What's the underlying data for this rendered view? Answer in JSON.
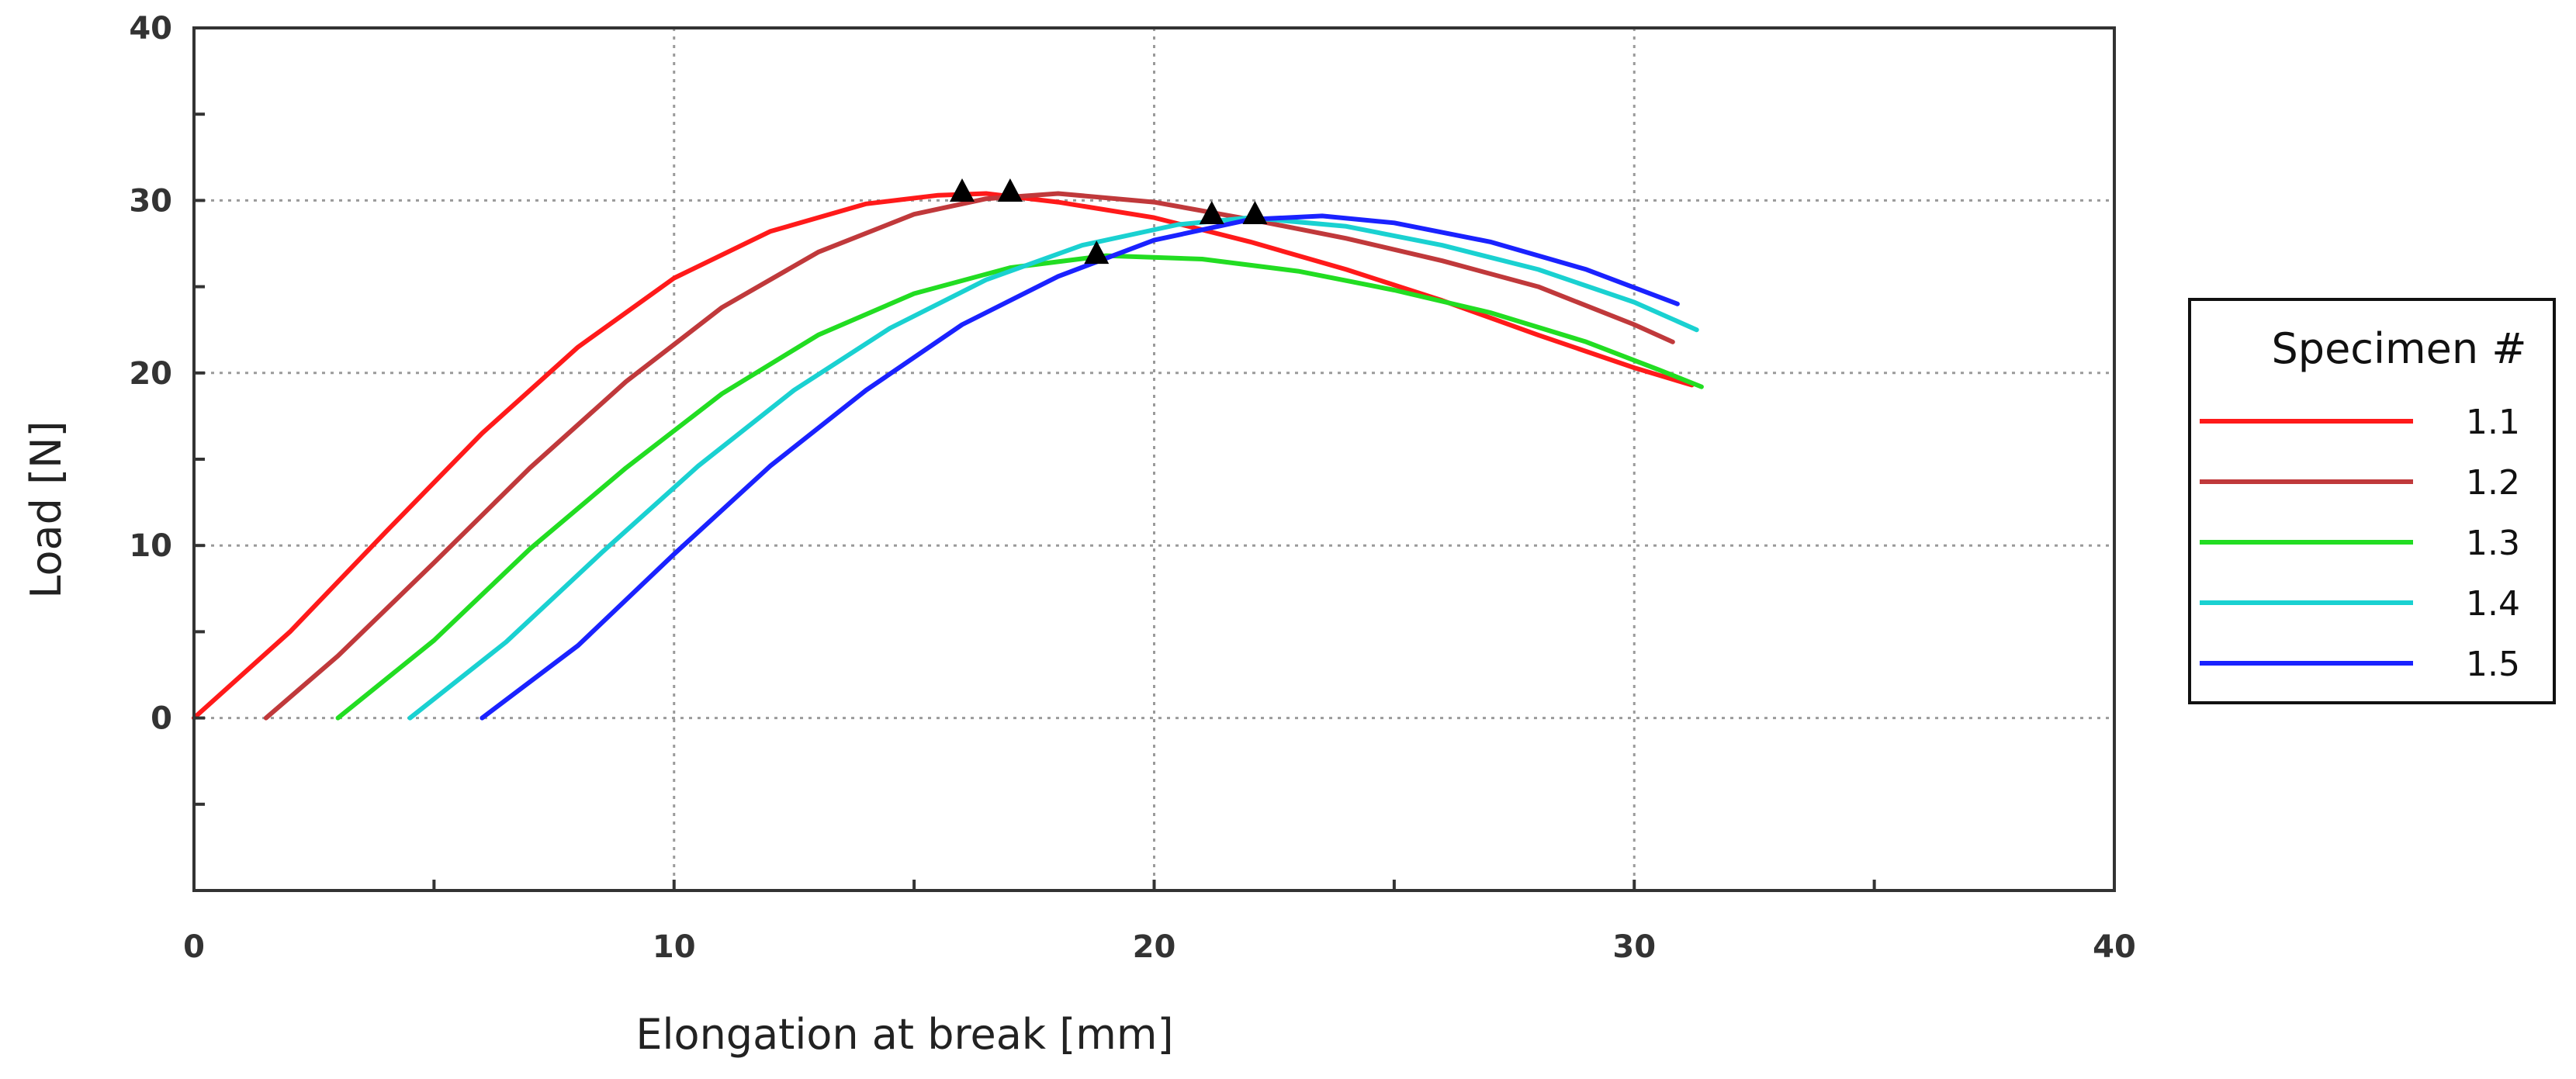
{
  "chart_data": {
    "type": "line",
    "title": "",
    "xlabel": "Elongation at break [mm]",
    "ylabel": "Load [N]",
    "xlim": [
      0,
      40
    ],
    "ylim": [
      -10,
      40
    ],
    "xticks": [
      0,
      10,
      20,
      30,
      40
    ],
    "yticks": [
      0,
      10,
      20,
      30,
      40
    ],
    "x_minor_step": 5,
    "y_minor_step": 5,
    "grid": true,
    "legend": {
      "title": "Specimen #",
      "position": "right"
    },
    "series": [
      {
        "name": "1.1",
        "color": "#ff1a1a",
        "points": [
          [
            0,
            0
          ],
          [
            2,
            5
          ],
          [
            4,
            10.8
          ],
          [
            6,
            16.5
          ],
          [
            8,
            21.5
          ],
          [
            10,
            25.5
          ],
          [
            12,
            28.2
          ],
          [
            14,
            29.8
          ],
          [
            15.5,
            30.3
          ],
          [
            16.5,
            30.4
          ],
          [
            18,
            29.9
          ],
          [
            20,
            29
          ],
          [
            22,
            27.6
          ],
          [
            24,
            26
          ],
          [
            26,
            24.2
          ],
          [
            28,
            22.2
          ],
          [
            30,
            20.3
          ],
          [
            31.2,
            19.3
          ]
        ],
        "peak": [
          16.0,
          30.6
        ]
      },
      {
        "name": "1.2",
        "color": "#c0393b",
        "points": [
          [
            1.5,
            0
          ],
          [
            3,
            3.6
          ],
          [
            5,
            9
          ],
          [
            7,
            14.5
          ],
          [
            9,
            19.5
          ],
          [
            11,
            23.8
          ],
          [
            13,
            27
          ],
          [
            15,
            29.2
          ],
          [
            16.5,
            30.1
          ],
          [
            18,
            30.4
          ],
          [
            20,
            29.9
          ],
          [
            22,
            28.9
          ],
          [
            24,
            27.8
          ],
          [
            26,
            26.5
          ],
          [
            28,
            25
          ],
          [
            30,
            22.8
          ],
          [
            30.8,
            21.8
          ]
        ],
        "peak": [
          17.0,
          30.6
        ]
      },
      {
        "name": "1.3",
        "color": "#22dd22",
        "points": [
          [
            3,
            0
          ],
          [
            5,
            4.5
          ],
          [
            7,
            9.8
          ],
          [
            9,
            14.5
          ],
          [
            11,
            18.8
          ],
          [
            13,
            22.2
          ],
          [
            15,
            24.6
          ],
          [
            17,
            26.1
          ],
          [
            19,
            26.8
          ],
          [
            21,
            26.6
          ],
          [
            23,
            25.9
          ],
          [
            25,
            24.8
          ],
          [
            27,
            23.5
          ],
          [
            29,
            21.8
          ],
          [
            30.5,
            20.2
          ],
          [
            31.4,
            19.2
          ]
        ],
        "peak": [
          18.8,
          27.0
        ]
      },
      {
        "name": "1.4",
        "color": "#1ad1d1",
        "points": [
          [
            4.5,
            0
          ],
          [
            6.5,
            4.4
          ],
          [
            8.5,
            9.6
          ],
          [
            10.5,
            14.6
          ],
          [
            12.5,
            19
          ],
          [
            14.5,
            22.6
          ],
          [
            16.5,
            25.4
          ],
          [
            18.5,
            27.4
          ],
          [
            20.5,
            28.6
          ],
          [
            22,
            29
          ],
          [
            24,
            28.5
          ],
          [
            26,
            27.4
          ],
          [
            28,
            26
          ],
          [
            30,
            24.1
          ],
          [
            31.3,
            22.5
          ]
        ],
        "peak": [
          21.2,
          29.3
        ]
      },
      {
        "name": "1.5",
        "color": "#1a22ff",
        "points": [
          [
            6,
            0
          ],
          [
            8,
            4.2
          ],
          [
            10,
            9.5
          ],
          [
            12,
            14.6
          ],
          [
            14,
            19
          ],
          [
            16,
            22.8
          ],
          [
            18,
            25.6
          ],
          [
            20,
            27.7
          ],
          [
            22,
            28.9
          ],
          [
            23.5,
            29.1
          ],
          [
            25,
            28.7
          ],
          [
            27,
            27.6
          ],
          [
            29,
            26
          ],
          [
            30.9,
            24
          ]
        ],
        "peak": [
          22.1,
          29.3
        ]
      }
    ]
  }
}
